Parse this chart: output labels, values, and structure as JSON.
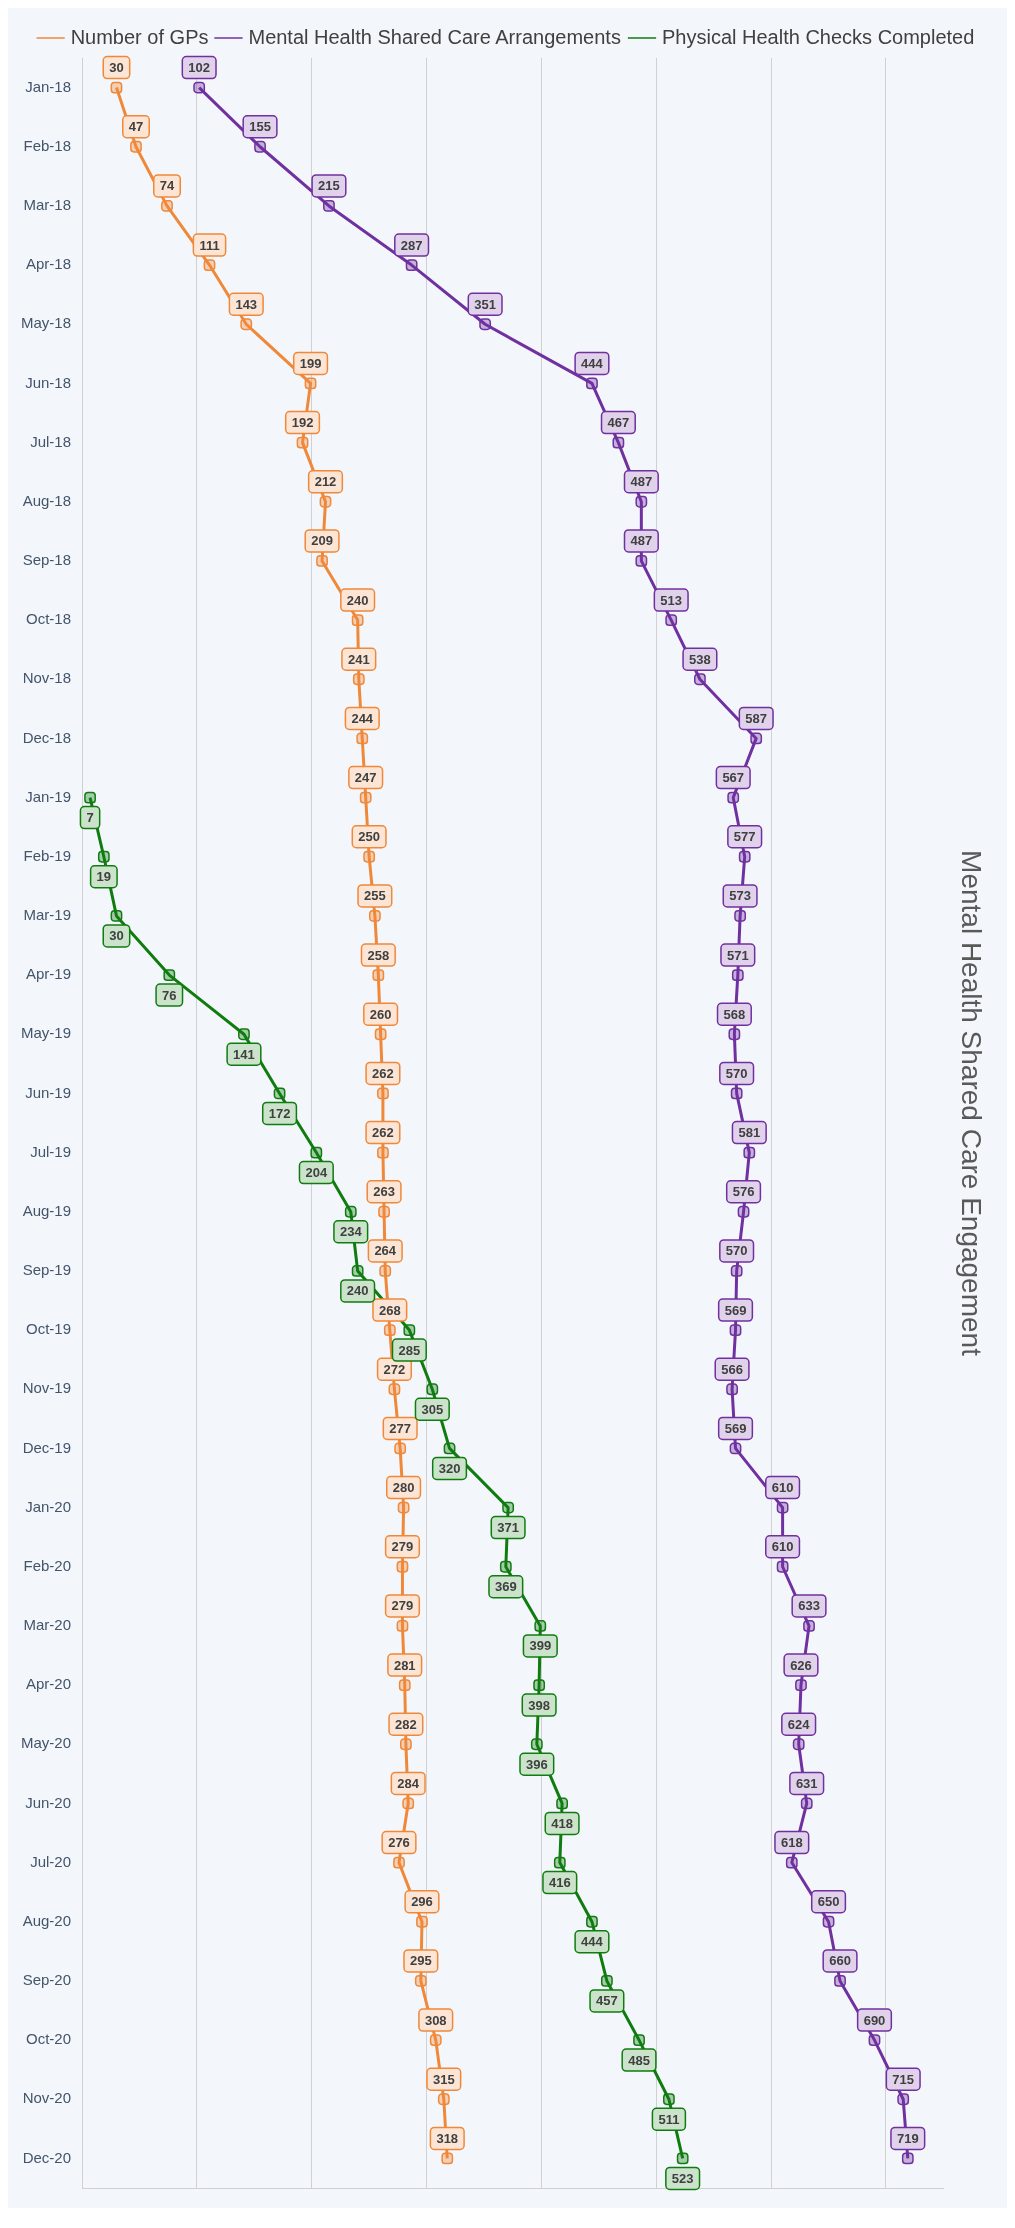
{
  "chart_data": {
    "type": "line",
    "orientation": "horizontal",
    "title": "Mental Health Shared Care Engagement",
    "categories": [
      "Jan-18",
      "Feb-18",
      "Mar-18",
      "Apr-18",
      "May-18",
      "Jun-18",
      "Jul-18",
      "Aug-18",
      "Sep-18",
      "Oct-18",
      "Nov-18",
      "Dec-18",
      "Jan-19",
      "Feb-19",
      "Mar-19",
      "Apr-19",
      "May-19",
      "Jun-19",
      "Jul-19",
      "Aug-19",
      "Sep-19",
      "Oct-19",
      "Nov-19",
      "Dec-19",
      "Jan-20",
      "Feb-20",
      "Mar-20",
      "Apr-20",
      "May-20",
      "Jun-20",
      "Jul-20",
      "Aug-20",
      "Sep-20",
      "Oct-20",
      "Nov-20",
      "Dec-20"
    ],
    "series": [
      {
        "name": "Number of GPs",
        "color": "#f0883a",
        "values": [
          30,
          47,
          74,
          111,
          143,
          199,
          192,
          212,
          209,
          240,
          241,
          244,
          247,
          250,
          255,
          258,
          260,
          262,
          262,
          263,
          264,
          268,
          272,
          277,
          280,
          279,
          279,
          281,
          282,
          284,
          276,
          296,
          295,
          308,
          315,
          318
        ]
      },
      {
        "name": "Mental Health Shared Care Arrangements",
        "color": "#7030a0",
        "values": [
          102,
          155,
          215,
          287,
          351,
          444,
          467,
          487,
          487,
          513,
          538,
          587,
          567,
          577,
          573,
          571,
          568,
          570,
          581,
          576,
          570,
          569,
          566,
          569,
          610,
          610,
          633,
          626,
          624,
          631,
          618,
          650,
          660,
          690,
          715,
          719
        ]
      },
      {
        "name": "Physical Health Checks Completed",
        "color": "#107c10",
        "values": [
          null,
          null,
          null,
          null,
          null,
          null,
          null,
          null,
          null,
          null,
          null,
          null,
          7,
          19,
          30,
          76,
          141,
          172,
          204,
          234,
          240,
          285,
          305,
          320,
          371,
          369,
          399,
          398,
          396,
          418,
          416,
          444,
          457,
          485,
          511,
          523
        ]
      }
    ],
    "xlim": [
      0,
      750
    ],
    "xticks": [
      {
        "value": 0,
        "label": null
      },
      {
        "value": 100,
        "label": null
      },
      {
        "value": 200,
        "label": null
      },
      {
        "value": 300,
        "label": null
      },
      {
        "value": 400,
        "label": null
      },
      {
        "value": 500,
        "label": null
      },
      {
        "value": 600,
        "label": null
      },
      {
        "value": 700,
        "label": null
      }
    ],
    "tick_labels": "y",
    "grid": "x",
    "legend": "top",
    "marker": "square",
    "data_labels": true
  }
}
